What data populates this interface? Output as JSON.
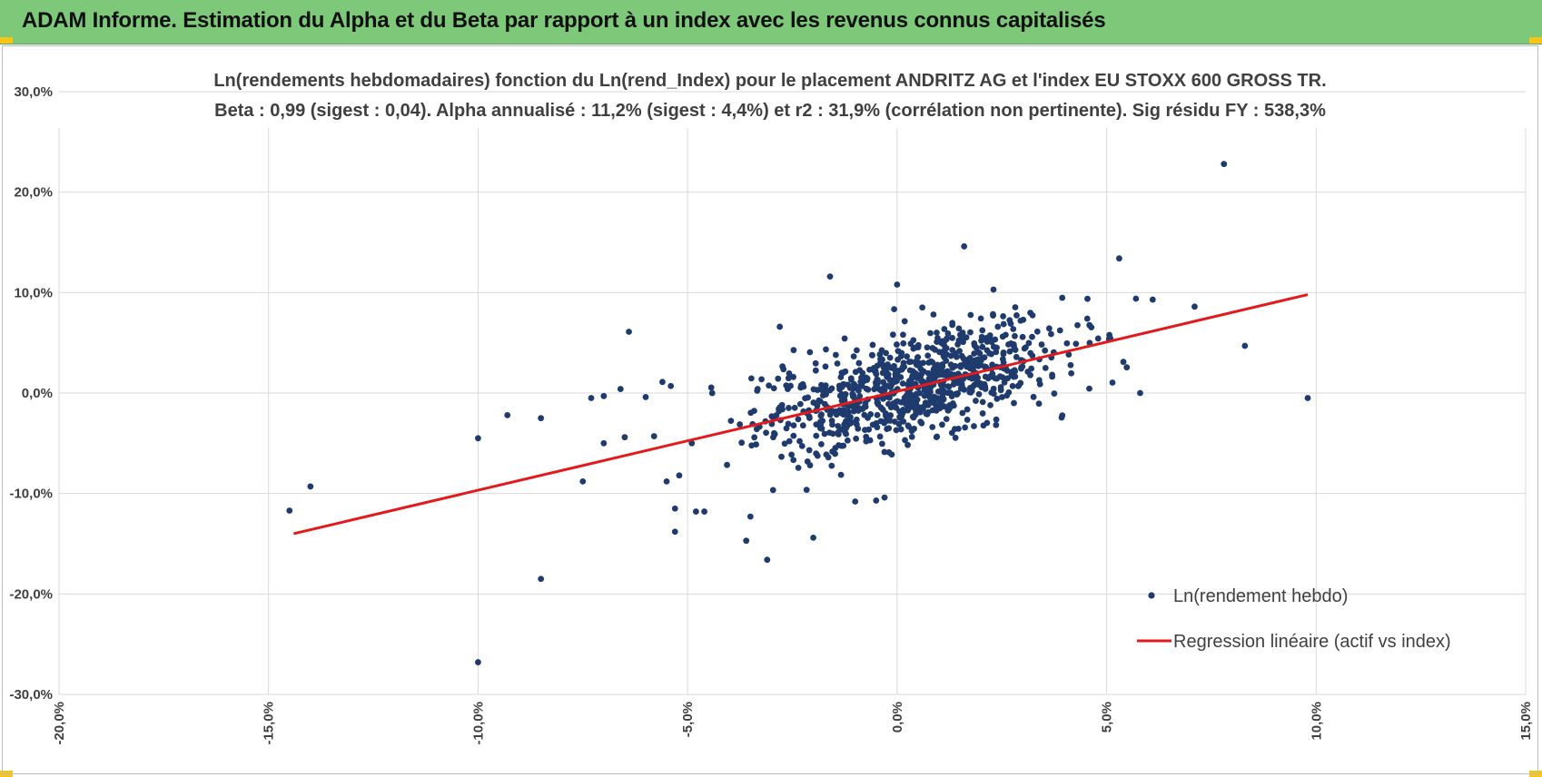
{
  "header": {
    "title": "ADAM Informe. Estimation du Alpha et du Beta par rapport à un index avec les revenus connus capitalisés"
  },
  "colors": {
    "header_bg": "#7ec87a",
    "corner_marks": "#f5c518",
    "points": "#1f3b6e",
    "regression": "#e31a1c",
    "grid": "#d9d9d9"
  },
  "chart_data": {
    "type": "scatter",
    "title": "Ln(rendements hebdomadaires) fonction du Ln(rend_Index) pour le placement ANDRITZ AG et l'index EU STOXX 600 GROSS TR.",
    "subtitle": "Beta : 0,99 (sigest : 0,04). Alpha annualisé : 11,2% (sigest : 4,4%) et r2 : 31,9% (corrélation non pertinente). Sig résidu FY : 538,3%",
    "xlim": [
      -0.2,
      0.15
    ],
    "ylim": [
      -0.3,
      0.3
    ],
    "x_ticks": [
      -0.2,
      -0.15,
      -0.1,
      -0.05,
      0.0,
      0.05,
      0.1,
      0.15
    ],
    "x_tick_labels": [
      "-20,0%",
      "-15,0%",
      "-10,0%",
      "-5,0%",
      "0,0%",
      "5,0%",
      "10,0%",
      "15,0%"
    ],
    "y_ticks": [
      0.3,
      0.2,
      0.1,
      0.0,
      -0.1,
      -0.2,
      -0.3
    ],
    "y_tick_labels": [
      "30,0%",
      "20,0%",
      "10,0%",
      "0,0%",
      "-10,0%",
      "-20,0%",
      "-30,0%"
    ],
    "grid": true,
    "legend_position": "bottom-right",
    "series": [
      {
        "name": "Ln(rendement hebdo)",
        "kind": "scatter",
        "points_outliers": [
          [
            -0.145,
            -0.117
          ],
          [
            -0.14,
            -0.093
          ],
          [
            -0.1,
            -0.268
          ],
          [
            -0.1,
            -0.045
          ],
          [
            -0.093,
            -0.022
          ],
          [
            -0.085,
            -0.025
          ],
          [
            -0.085,
            -0.185
          ],
          [
            -0.075,
            -0.088
          ],
          [
            -0.073,
            -0.005
          ],
          [
            -0.07,
            -0.05
          ],
          [
            -0.07,
            -0.003
          ],
          [
            -0.066,
            0.004
          ],
          [
            -0.065,
            -0.044
          ],
          [
            -0.064,
            0.061
          ],
          [
            -0.06,
            -0.004
          ],
          [
            -0.058,
            -0.043
          ],
          [
            -0.056,
            0.011
          ],
          [
            -0.055,
            -0.088
          ],
          [
            -0.054,
            0.007
          ],
          [
            -0.053,
            -0.115
          ],
          [
            -0.053,
            -0.138
          ],
          [
            -0.052,
            -0.082
          ],
          [
            -0.049,
            -0.05
          ],
          [
            -0.048,
            -0.118
          ],
          [
            -0.046,
            -0.118
          ],
          [
            -0.016,
            0.116
          ],
          [
            -0.036,
            -0.147
          ],
          [
            -0.035,
            -0.123
          ],
          [
            -0.031,
            -0.166
          ],
          [
            -0.028,
            0.066
          ],
          [
            -0.02,
            -0.144
          ],
          [
            -0.01,
            -0.108
          ],
          [
            -0.005,
            -0.107
          ],
          [
            -0.003,
            -0.104
          ],
          [
            0.0,
            0.108
          ],
          [
            0.016,
            0.146
          ],
          [
            0.023,
            0.103
          ],
          [
            0.053,
            0.134
          ],
          [
            0.054,
            0.031
          ],
          [
            0.057,
            0.094
          ],
          [
            0.058,
            0.0
          ],
          [
            0.061,
            0.093
          ],
          [
            0.071,
            0.086
          ],
          [
            0.078,
            0.228
          ],
          [
            0.083,
            0.047
          ],
          [
            0.098,
            -0.005
          ]
        ],
        "cluster": {
          "count": 850,
          "x_mean": 0.003,
          "x_sd": 0.018,
          "beta": 0.99,
          "intercept": 0.002,
          "resid_sd": 0.03
        }
      },
      {
        "name": "Regression linéaire (actif vs index)",
        "kind": "line",
        "points": [
          [
            -0.144,
            -0.14
          ],
          [
            0.098,
            0.098
          ]
        ]
      }
    ]
  }
}
